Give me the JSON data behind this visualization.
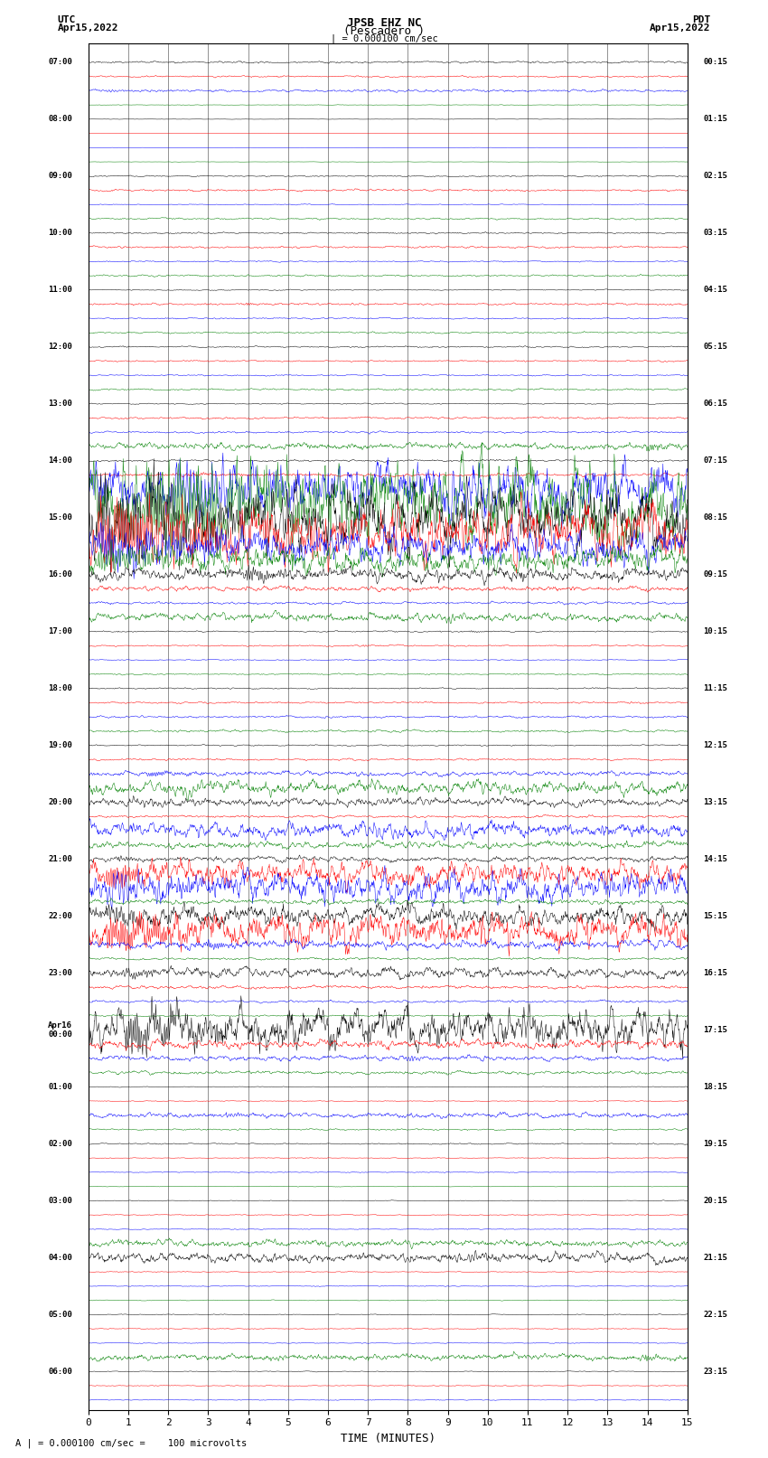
{
  "title_line1": "JPSB EHZ NC",
  "title_line2": "(Pescadero )",
  "scale_label": "| = 0.000100 cm/sec",
  "left_header_line1": "UTC",
  "left_header_line2": "Apr15,2022",
  "right_header_line1": "PDT",
  "right_header_line2": "Apr15,2022",
  "bottom_label": "TIME (MINUTES)",
  "bottom_note": "A | = 0.000100 cm/sec =    100 microvolts",
  "xlim": [
    0,
    15
  ],
  "xticks": [
    0,
    1,
    2,
    3,
    4,
    5,
    6,
    7,
    8,
    9,
    10,
    11,
    12,
    13,
    14,
    15
  ],
  "trace_colors_cycle": [
    "black",
    "red",
    "blue",
    "green"
  ],
  "background_color": "#ffffff",
  "num_traces": 95,
  "seed": 42,
  "left_labels": {
    "0": "07:00",
    "4": "08:00",
    "8": "09:00",
    "12": "10:00",
    "16": "11:00",
    "20": "12:00",
    "24": "13:00",
    "28": "14:00",
    "32": "15:00",
    "36": "16:00",
    "40": "17:00",
    "44": "18:00",
    "48": "19:00",
    "52": "20:00",
    "56": "21:00",
    "60": "22:00",
    "64": "23:00",
    "68": "Apr16\n00:00",
    "72": "01:00",
    "76": "02:00",
    "80": "03:00",
    "84": "04:00",
    "88": "05:00",
    "92": "06:00"
  },
  "right_labels": {
    "0": "00:15",
    "4": "01:15",
    "8": "02:15",
    "12": "03:15",
    "16": "04:15",
    "20": "05:15",
    "24": "06:15",
    "28": "07:15",
    "32": "08:15",
    "36": "09:15",
    "40": "10:15",
    "44": "11:15",
    "48": "12:15",
    "52": "13:15",
    "56": "14:15",
    "60": "15:15",
    "64": "16:15",
    "68": "17:15",
    "72": "18:15",
    "76": "19:15",
    "80": "20:15",
    "84": "21:15",
    "88": "22:15",
    "92": "23:15"
  }
}
